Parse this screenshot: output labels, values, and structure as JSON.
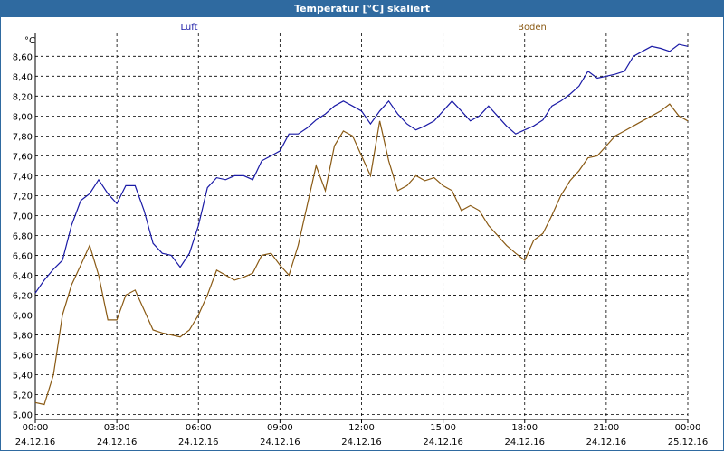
{
  "window": {
    "title": "Temperatur [°C] skaliert"
  },
  "colors": {
    "titlebar": "#2f6aa0",
    "luft": "#1a1aa6",
    "boden": "#8a5a14",
    "grid": "#000000"
  },
  "chart_data": {
    "type": "line",
    "title": "Temperatur [°C] skaliert",
    "ylabel": "°C",
    "xlabel": "",
    "ylim": [
      4.95,
      8.83
    ],
    "xlim": [
      0,
      24
    ],
    "grid": true,
    "grid_style": "dashed",
    "legend_placement": "top",
    "y_ticks": [
      "5,00",
      "5,20",
      "5,40",
      "5,60",
      "5,80",
      "6,00",
      "6,20",
      "6,40",
      "6,60",
      "6,80",
      "7,00",
      "7,20",
      "7,40",
      "7,60",
      "7,80",
      "8,00",
      "8,20",
      "8,40",
      "8,60"
    ],
    "x_ticks": [
      {
        "time": "00:00",
        "date": "24.12.16"
      },
      {
        "time": "03:00",
        "date": "24.12.16"
      },
      {
        "time": "06:00",
        "date": "24.12.16"
      },
      {
        "time": "09:00",
        "date": "24.12.16"
      },
      {
        "time": "12:00",
        "date": "24.12.16"
      },
      {
        "time": "15:00",
        "date": "24.12.16"
      },
      {
        "time": "18:00",
        "date": "24.12.16"
      },
      {
        "time": "21:00",
        "date": "24.12.16"
      },
      {
        "time": "00:00",
        "date": "25.12.16"
      }
    ],
    "series": [
      {
        "name": "Luft",
        "x": [
          0,
          0.33,
          0.67,
          1,
          1.33,
          1.67,
          2,
          2.33,
          2.67,
          3,
          3.33,
          3.67,
          4,
          4.33,
          4.67,
          5,
          5.33,
          5.67,
          6,
          6.33,
          6.67,
          7,
          7.33,
          7.67,
          8,
          8.33,
          8.67,
          9,
          9.33,
          9.67,
          10,
          10.33,
          10.67,
          11,
          11.33,
          11.67,
          12,
          12.33,
          12.67,
          13,
          13.33,
          13.67,
          14,
          14.33,
          14.67,
          15,
          15.33,
          15.67,
          16,
          16.33,
          16.67,
          17,
          17.33,
          17.67,
          18,
          18.33,
          18.67,
          19,
          19.33,
          19.67,
          20,
          20.33,
          20.67,
          21,
          21.33,
          21.67,
          22,
          22.33,
          22.67,
          23,
          23.33,
          23.67,
          24
        ],
        "y": [
          6.22,
          6.35,
          6.46,
          6.55,
          6.9,
          7.15,
          7.22,
          7.36,
          7.22,
          7.12,
          7.3,
          7.3,
          7.05,
          6.72,
          6.62,
          6.6,
          6.48,
          6.62,
          6.9,
          7.28,
          7.38,
          7.36,
          7.4,
          7.4,
          7.36,
          7.55,
          7.6,
          7.65,
          7.82,
          7.82,
          7.88,
          7.96,
          8.02,
          8.1,
          8.15,
          8.1,
          8.05,
          7.92,
          8.05,
          8.15,
          8.02,
          7.92,
          7.86,
          7.9,
          7.95,
          8.05,
          8.15,
          8.05,
          7.95,
          8.0,
          8.1,
          8.0,
          7.9,
          7.82,
          7.86,
          7.9,
          7.96,
          8.1,
          8.15,
          8.22,
          8.3,
          8.45,
          8.38,
          8.4,
          8.42,
          8.45,
          8.6,
          8.65,
          8.7,
          8.68,
          8.65,
          8.72,
          8.7
        ]
      },
      {
        "name": "Boden",
        "x": [
          0,
          0.33,
          0.67,
          1,
          1.33,
          1.67,
          2,
          2.33,
          2.67,
          3,
          3.33,
          3.67,
          4,
          4.33,
          4.67,
          5,
          5.33,
          5.67,
          6,
          6.33,
          6.67,
          7,
          7.33,
          7.67,
          8,
          8.33,
          8.67,
          9,
          9.33,
          9.67,
          10,
          10.33,
          10.67,
          11,
          11.33,
          11.67,
          12,
          12.33,
          12.67,
          13,
          13.33,
          13.67,
          14,
          14.33,
          14.67,
          15,
          15.33,
          15.67,
          16,
          16.33,
          16.67,
          17,
          17.33,
          17.67,
          18,
          18.33,
          18.67,
          19,
          19.33,
          19.67,
          20,
          20.33,
          20.67,
          21,
          21.33,
          21.67,
          22,
          22.33,
          22.67,
          23,
          23.33,
          23.67,
          24
        ],
        "y": [
          5.12,
          5.1,
          5.4,
          6.0,
          6.3,
          6.5,
          6.7,
          6.4,
          5.95,
          5.95,
          6.2,
          6.25,
          6.05,
          5.85,
          5.82,
          5.8,
          5.78,
          5.85,
          6.0,
          6.2,
          6.45,
          6.4,
          6.35,
          6.38,
          6.42,
          6.6,
          6.62,
          6.5,
          6.4,
          6.7,
          7.1,
          7.5,
          7.25,
          7.7,
          7.85,
          7.8,
          7.6,
          7.4,
          7.95,
          7.55,
          7.25,
          7.3,
          7.4,
          7.35,
          7.38,
          7.3,
          7.25,
          7.05,
          7.1,
          7.05,
          6.9,
          6.8,
          6.7,
          6.62,
          6.55,
          6.75,
          6.82,
          7.0,
          7.2,
          7.35,
          7.45,
          7.58,
          7.6,
          7.7,
          7.8,
          7.85,
          7.9,
          7.95,
          8.0,
          8.05,
          8.12,
          8.0,
          7.95
        ]
      }
    ]
  }
}
